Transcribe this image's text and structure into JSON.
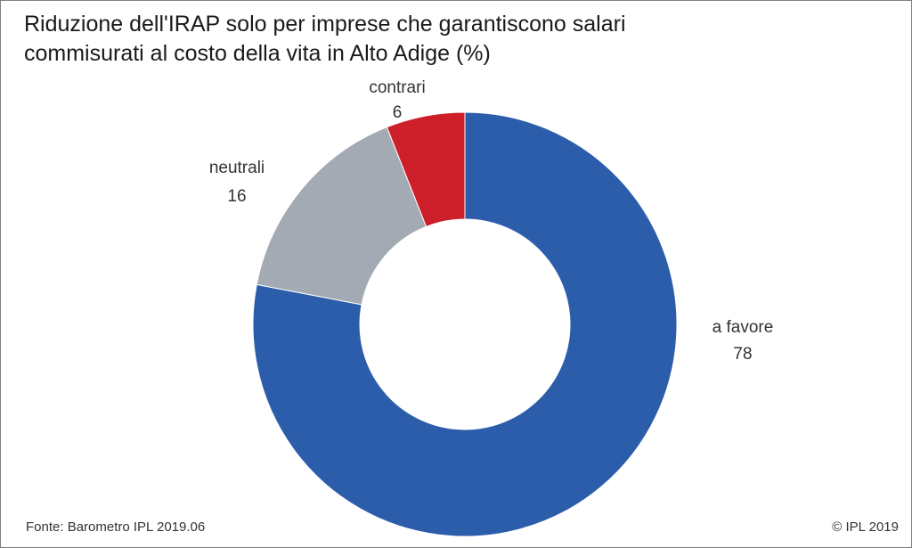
{
  "chart_data": {
    "type": "pie",
    "donut": true,
    "title": "Riduzione dell'IRAP solo per imprese che garantiscono salari commisurati al costo della vita in Alto Adige (%)",
    "title_lines": [
      "Riduzione dell'IRAP solo per imprese che garantiscono salari",
      "commisurati al costo della vita in Alto Adige (%)"
    ],
    "slices": [
      {
        "label": "a favore",
        "value": 78,
        "color": "#2c5dab"
      },
      {
        "label": "neutrali",
        "value": 16,
        "color": "#a4aab3"
      },
      {
        "label": "contrari",
        "value": 6,
        "color": "#cc1f2a"
      }
    ]
  },
  "footer": {
    "source": "Fonte: Barometro IPL 2019.06",
    "copyright": "© IPL 2019"
  }
}
